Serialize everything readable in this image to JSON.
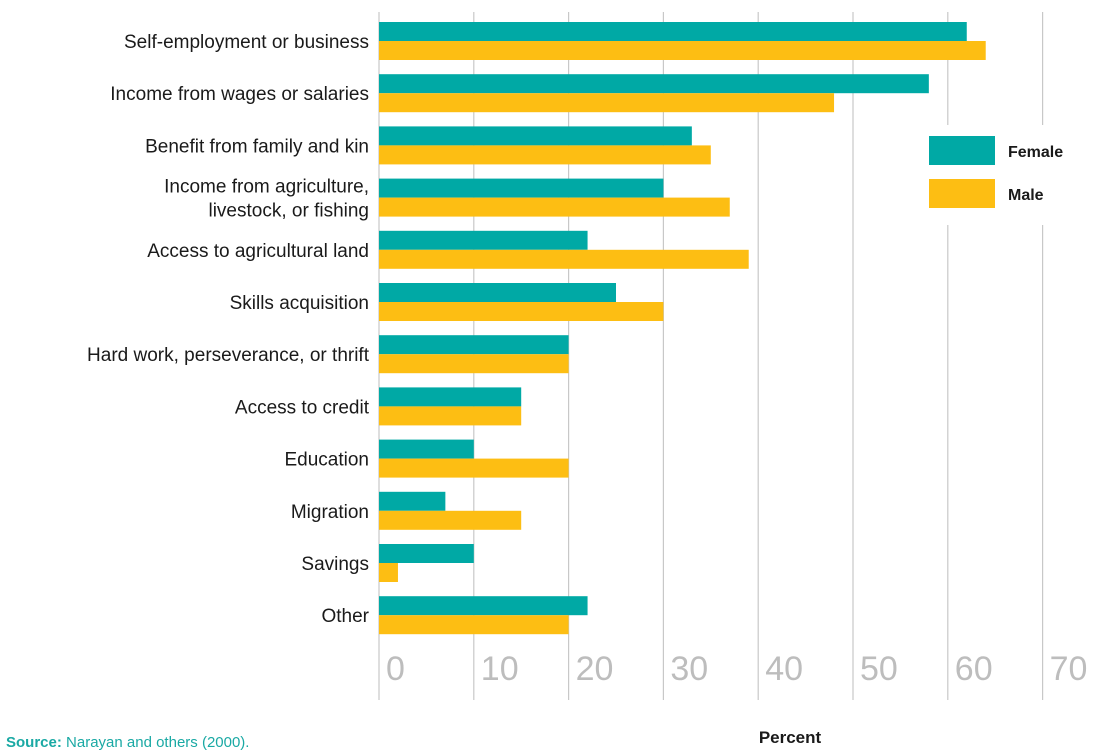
{
  "chart_data": {
    "type": "bar",
    "orientation": "horizontal",
    "categories": [
      [
        "Self-employment or business"
      ],
      [
        "Income from wages or salaries"
      ],
      [
        "Benefit from family and kin"
      ],
      [
        "Income from agriculture,",
        "livestock, or fishing"
      ],
      [
        "Access to agricultural land"
      ],
      [
        "Skills acquisition"
      ],
      [
        "Hard work, perseverance, or thrift"
      ],
      [
        "Access to credit"
      ],
      [
        "Education"
      ],
      [
        "Migration"
      ],
      [
        "Savings"
      ],
      [
        "Other"
      ]
    ],
    "series": [
      {
        "name": "Female",
        "color": "#00a9a5",
        "values": [
          62,
          58,
          33,
          30,
          22,
          25,
          20,
          15,
          10,
          7,
          10,
          22
        ]
      },
      {
        "name": "Male",
        "color": "#fdbe13",
        "values": [
          64,
          48,
          35,
          37,
          39,
          30,
          20,
          15,
          20,
          15,
          2,
          20
        ]
      }
    ],
    "xticks": [
      "0",
      "10",
      "20",
      "30",
      "40",
      "50",
      "60",
      "70"
    ],
    "xlim": [
      0,
      70
    ],
    "xlabel": "Percent",
    "grid": "vertical",
    "legend_position": "right"
  },
  "source": {
    "label": "Source:",
    "text": "Narayan and others (2000)."
  }
}
